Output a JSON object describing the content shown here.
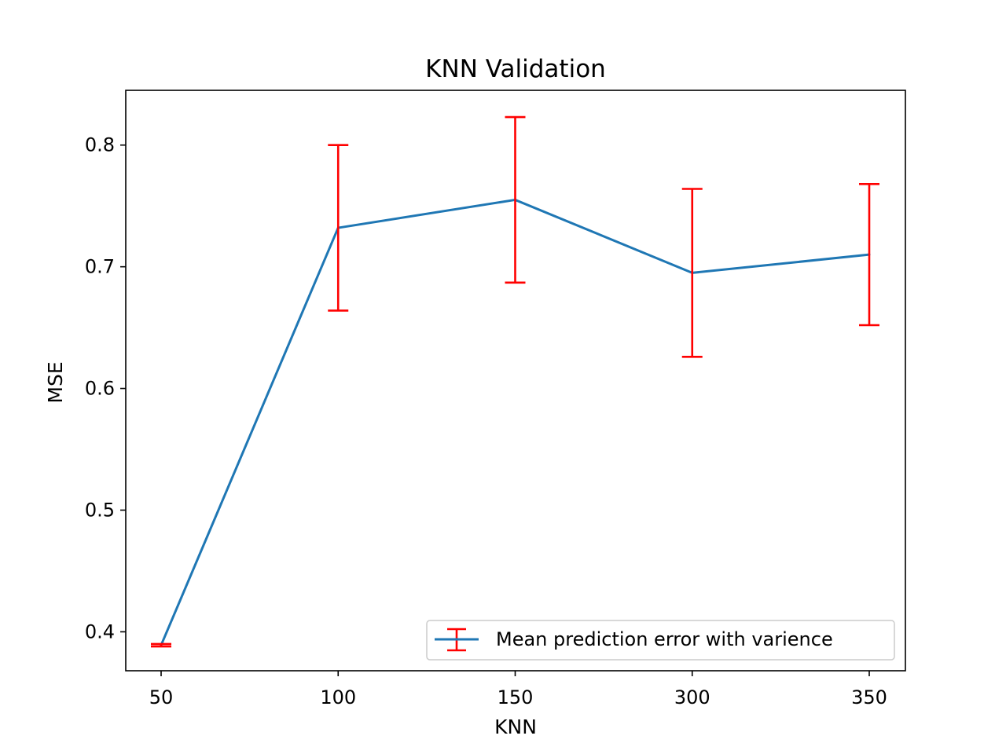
{
  "chart_data": {
    "type": "line",
    "title": "KNN Validation",
    "xlabel": "KNN",
    "ylabel": "MSE",
    "categories": [
      "50",
      "100",
      "150",
      "300",
      "350"
    ],
    "yticks": [
      "0.4",
      "0.5",
      "0.6",
      "0.7",
      "0.8"
    ],
    "ylim": [
      0.368,
      0.845
    ],
    "grid": false,
    "legend_position": "lower-right",
    "series": [
      {
        "name": "Mean prediction error with varience",
        "values": [
          0.389,
          0.732,
          0.755,
          0.695,
          0.71
        ],
        "error": [
          0.001,
          0.068,
          0.068,
          0.069,
          0.058
        ],
        "line_color": "#1f77b4",
        "error_color": "#ff0000"
      }
    ]
  }
}
